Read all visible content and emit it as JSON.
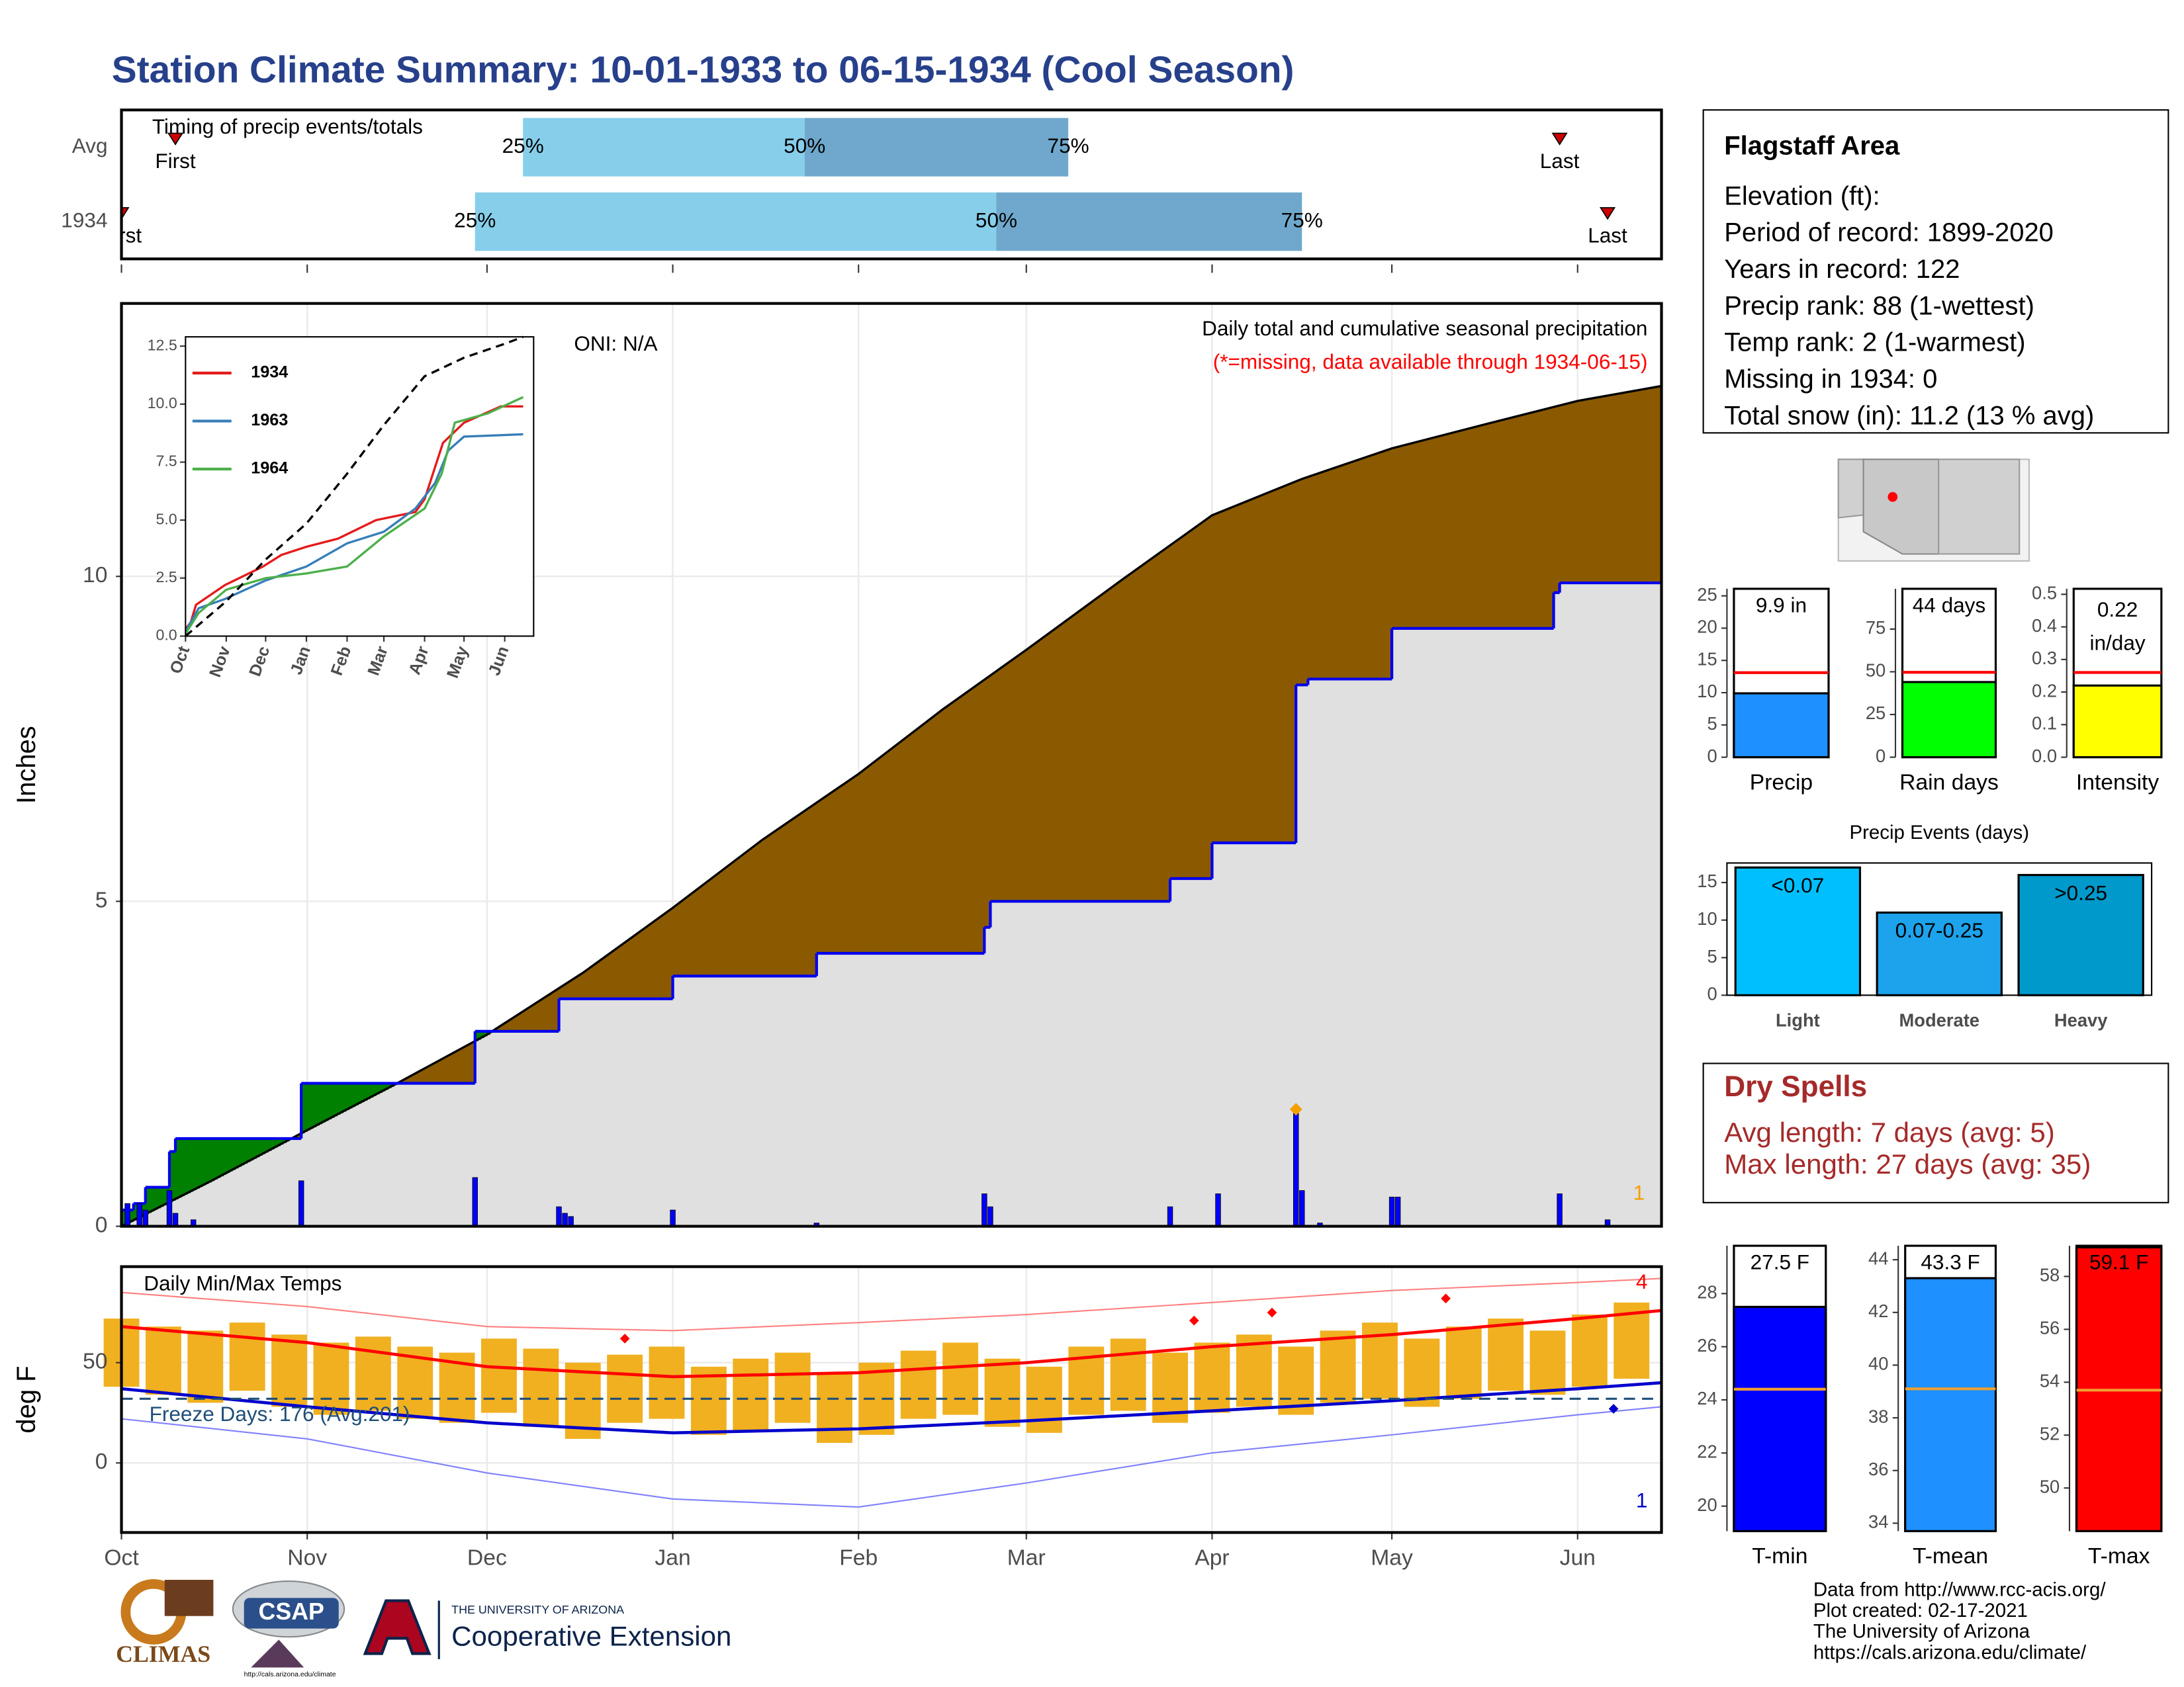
{
  "title": "Station Climate Summary: 10-01-1933 to 06-15-1934 (Cool Season)",
  "chart_data": [
    {
      "type": "timing",
      "subtitle": "Timing of precip events/totals",
      "categories": [
        "Avg",
        "1934"
      ],
      "first": [
        9,
        0
      ],
      "q25": [
        67,
        59
      ],
      "q50": [
        114,
        146
      ],
      "q75": [
        158,
        197
      ],
      "last": [
        240,
        248
      ],
      "labels": {
        "first": "First",
        "last": "Last",
        "q25": "25%",
        "q50": "50%",
        "q75": "75%"
      },
      "colors": {
        "low": "#87ceeb",
        "high": "#6fa8cc",
        "marker": "#cc0000"
      },
      "xlim": [
        0,
        257
      ]
    },
    {
      "type": "precip",
      "ylabel": "Inches",
      "oni": "ONI: N/A",
      "description": "Daily total and cumulative seasonal precipitation",
      "missing": "(*=missing, data available through 1934-06-15)",
      "count": "1",
      "xlim": [
        0,
        257
      ],
      "ylim": [
        0,
        14.2
      ],
      "yticks": [
        0,
        5,
        10
      ],
      "xticks": [
        0,
        31,
        61,
        92,
        123,
        151,
        182,
        212,
        243
      ],
      "grid": true,
      "average": {
        "x": [
          0,
          15,
          31,
          46,
          61,
          77,
          92,
          107,
          123,
          137,
          151,
          167,
          182,
          197,
          212,
          228,
          243,
          257
        ],
        "values": [
          0,
          0.7,
          1.48,
          2.2,
          2.95,
          3.9,
          4.9,
          5.95,
          6.96,
          7.95,
          8.87,
          9.95,
          10.94,
          11.5,
          11.97,
          12.35,
          12.7,
          12.93
        ],
        "color": "#e0e0e0"
      },
      "cumulative": {
        "x": [
          0,
          2,
          4,
          8,
          9,
          30,
          59,
          73,
          92,
          116,
          144,
          145,
          175,
          182,
          196,
          198,
          212,
          239,
          240
        ],
        "values": [
          0.25,
          0.35,
          0.6,
          1.15,
          1.35,
          2.2,
          3.0,
          3.5,
          3.85,
          4.2,
          4.6,
          5.0,
          5.35,
          5.9,
          8.33,
          8.42,
          9.2,
          9.75,
          9.9
        ],
        "color": "#0000ee"
      },
      "daily": {
        "x": [
          1,
          3,
          4,
          8,
          9,
          12,
          30,
          59,
          73,
          74,
          75,
          92,
          116,
          144,
          145,
          175,
          183,
          196,
          197,
          200,
          212,
          213,
          240,
          248
        ],
        "values": [
          0.35,
          0.35,
          0.25,
          0.55,
          0.2,
          0.1,
          0.7,
          0.75,
          0.3,
          0.2,
          0.15,
          0.25,
          0.05,
          0.5,
          0.3,
          0.3,
          0.5,
          1.8,
          0.55,
          0.05,
          0.45,
          0.45,
          0.5,
          0.1
        ],
        "color": "#0000ff"
      },
      "max_daily": {
        "x": 196,
        "value": 1.8,
        "color": "#f5a000"
      },
      "fill_below": "#8b5a00",
      "fill_above": "#008000"
    },
    {
      "type": "line",
      "xlim": [
        0,
        265
      ],
      "ylim": [
        0,
        12.9
      ],
      "yticks": [
        {
          "value": 0,
          "label": "0.0"
        },
        {
          "value": 2.5,
          "label": "2.5"
        },
        {
          "value": 5,
          "label": "5.0"
        },
        {
          "value": 7.5,
          "label": "7.5"
        },
        {
          "value": 10,
          "label": "10.0"
        },
        {
          "value": 12.5,
          "label": "12.5"
        }
      ],
      "xticks": [
        {
          "value": 0,
          "label": "Oct"
        },
        {
          "value": 31,
          "label": "Nov"
        },
        {
          "value": 61,
          "label": "Dec"
        },
        {
          "value": 92,
          "label": "Jan"
        },
        {
          "value": 123,
          "label": "Feb"
        },
        {
          "value": 151,
          "label": "Mar"
        },
        {
          "value": 182,
          "label": "Apr"
        },
        {
          "value": 212,
          "label": "May"
        },
        {
          "value": 243,
          "label": "Jun"
        }
      ],
      "series": [
        {
          "name": "1934",
          "color": "#e41a1c",
          "x": [
            0,
            4,
            8,
            30,
            59,
            73,
            92,
            116,
            145,
            175,
            182,
            196,
            212,
            240,
            257
          ],
          "values": [
            0.3,
            0.6,
            1.35,
            2.2,
            3.0,
            3.5,
            3.85,
            4.2,
            5.0,
            5.35,
            5.9,
            8.33,
            9.2,
            9.9,
            9.9
          ]
        },
        {
          "name": "1963",
          "color": "#377eb8",
          "x": [
            0,
            10,
            30,
            61,
            92,
            123,
            151,
            175,
            190,
            200,
            212,
            257
          ],
          "values": [
            0.2,
            1.2,
            1.6,
            2.4,
            3.0,
            4.0,
            4.5,
            5.5,
            6.6,
            8.0,
            8.6,
            8.7
          ]
        },
        {
          "name": "1964",
          "color": "#4daf4a",
          "x": [
            0,
            10,
            31,
            61,
            92,
            123,
            151,
            182,
            195,
            205,
            230,
            257
          ],
          "values": [
            0.1,
            1.0,
            2.0,
            2.5,
            2.7,
            3.0,
            4.3,
            5.5,
            7.0,
            9.2,
            9.6,
            10.3
          ]
        },
        {
          "color": "#000000",
          "dash": true,
          "x": [
            0,
            31,
            61,
            92,
            123,
            151,
            182,
            212,
            243,
            257
          ],
          "values": [
            0,
            1.5,
            3.3,
            4.85,
            7.0,
            9.1,
            11.2,
            12.0,
            12.6,
            12.9
          ]
        }
      ]
    },
    {
      "type": "temps",
      "title": "Daily Min/Max Temps",
      "ylabel": "deg F",
      "xlim": [
        0,
        257
      ],
      "ylim": [
        -34.7,
        97.9
      ],
      "yticks": [
        0,
        50
      ],
      "grid": true,
      "xticks": [
        {
          "value": 0,
          "label": "Oct"
        },
        {
          "value": 31,
          "label": "Nov"
        },
        {
          "value": 61,
          "label": "Dec"
        },
        {
          "value": 92,
          "label": "Jan"
        },
        {
          "value": 123,
          "label": "Feb"
        },
        {
          "value": 151,
          "label": "Mar"
        },
        {
          "value": 182,
          "label": "Apr"
        },
        {
          "value": 212,
          "label": "May"
        },
        {
          "value": 243,
          "label": "Jun"
        }
      ],
      "daily": {
        "x": [
          0,
          7,
          14,
          21,
          28,
          35,
          42,
          49,
          56,
          63,
          70,
          77,
          84,
          91,
          98,
          105,
          112,
          119,
          126,
          133,
          140,
          147,
          154,
          161,
          168,
          175,
          182,
          189,
          196,
          203,
          210,
          217,
          224,
          231,
          238,
          245,
          252
        ],
        "max": [
          72,
          68,
          66,
          70,
          64,
          60,
          63,
          58,
          55,
          62,
          57,
          50,
          54,
          58,
          48,
          52,
          55,
          45,
          50,
          56,
          60,
          52,
          48,
          58,
          62,
          55,
          60,
          64,
          58,
          66,
          70,
          62,
          68,
          72,
          66,
          74,
          80
        ],
        "min": [
          38,
          34,
          30,
          36,
          28,
          24,
          26,
          22,
          20,
          25,
          18,
          12,
          20,
          22,
          14,
          16,
          20,
          10,
          14,
          22,
          24,
          18,
          15,
          24,
          26,
          20,
          25,
          28,
          24,
          30,
          32,
          28,
          32,
          36,
          34,
          38,
          42
        ],
        "color": "#f0b020"
      },
      "avg_max": {
        "x": [
          0,
          31,
          61,
          92,
          123,
          151,
          182,
          212,
          243,
          257
        ],
        "values": [
          68,
          60,
          48,
          43,
          45,
          50,
          58,
          64,
          72,
          76
        ],
        "color": "#ff0000"
      },
      "avg_min": {
        "x": [
          0,
          31,
          61,
          92,
          123,
          151,
          182,
          212,
          243,
          257
        ],
        "values": [
          37,
          28,
          20,
          15,
          17,
          21,
          26,
          31,
          37,
          40
        ],
        "color": "#0000cc"
      },
      "record_max": {
        "x": [
          0,
          31,
          61,
          92,
          123,
          151,
          182,
          212,
          243,
          257
        ],
        "values": [
          85,
          78,
          68,
          66,
          70,
          74,
          80,
          86,
          90,
          92
        ],
        "color": "#ff8080"
      },
      "record_min": {
        "x": [
          0,
          31,
          61,
          92,
          123,
          151,
          182,
          212,
          243,
          257
        ],
        "values": [
          22,
          12,
          -5,
          -18,
          -22,
          -10,
          5,
          14,
          24,
          28
        ],
        "color": "#8080ff"
      },
      "freeze": {
        "value": 32,
        "label": "Freeze Days: 176 (Avg:201)",
        "color": "#1f4e79"
      },
      "highs": {
        "x": [
          84,
          179,
          192,
          221
        ],
        "values": [
          62,
          71,
          75,
          82
        ],
        "color": "#ff0000"
      },
      "lows": {
        "x": [
          249
        ],
        "values": [
          27
        ],
        "color": "#0000cc"
      },
      "count_high": "4",
      "count_low": "1"
    },
    {
      "type": "info",
      "title": "Flagstaff Area",
      "lines": [
        "Elevation (ft):",
        "Period of record: 1899-2020",
        "Years in record: 122",
        "Precip rank: 88 (1-wettest)",
        "Temp rank: 2 (1-warmest)",
        "Missing in 1934: 0",
        "Total snow (in): 11.2 (13 % avg)"
      ]
    },
    {
      "type": "bar",
      "categories": [
        "Precip"
      ],
      "values": [
        9.9
      ],
      "value_labels": [
        "9.9 in"
      ],
      "average": 13.1,
      "ylim": [
        0,
        26.1
      ],
      "yticks": [
        0,
        5,
        10,
        15,
        20,
        25
      ],
      "color": "#1e90ff",
      "avg_color": "#ff0000"
    },
    {
      "type": "bar",
      "categories": [
        "Rain days"
      ],
      "values": [
        44
      ],
      "value_labels": [
        "44 days"
      ],
      "average": 49.7,
      "ylim": [
        0,
        98.6
      ],
      "yticks": [
        0,
        25,
        50,
        75
      ],
      "color": "#00ff00",
      "avg_color": "#ff0000"
    },
    {
      "type": "bar",
      "categories": [
        "Intensity"
      ],
      "values": [
        0.22
      ],
      "unit": "in/day",
      "average": 0.26,
      "ylim": [
        0,
        0.517
      ],
      "yticks": [
        {
          "value": 0,
          "label": "0.0"
        },
        {
          "value": 0.1,
          "label": "0.1"
        },
        {
          "value": 0.2,
          "label": "0.2"
        },
        {
          "value": 0.3,
          "label": "0.3"
        },
        {
          "value": 0.4,
          "label": "0.4"
        },
        {
          "value": 0.5,
          "label": "0.5"
        }
      ],
      "color": "#ffff00",
      "avg_color": "#ff0000"
    },
    {
      "type": "events",
      "title": "Precip Events (days)",
      "categories": [
        "Light",
        "Moderate",
        "Heavy"
      ],
      "values": [
        17,
        11,
        16
      ],
      "bar_labels": [
        "<0.07",
        "0.07-0.25",
        ">0.25"
      ],
      "colors": [
        "#00bfff",
        "#1ca3ec",
        "#0099cc"
      ],
      "ylim": [
        0,
        17.6
      ],
      "yticks": [
        0,
        5,
        10,
        15
      ]
    },
    {
      "type": "text",
      "title": "Dry Spells",
      "lines": [
        "Avg length: 7 days (avg: 5)",
        "Max length: 27 days (avg: 35)"
      ],
      "color": "#a52a2a"
    },
    {
      "type": "bar",
      "categories": [
        "T-min"
      ],
      "values": [
        27.5
      ],
      "value_labels": [
        "27.5 F"
      ],
      "average": 24.4,
      "ylim": [
        19.06,
        29.8
      ],
      "yticks": [
        20,
        22,
        24,
        26,
        28
      ],
      "color": "#0000ff",
      "avg_color": "#f0a030"
    },
    {
      "type": "bar",
      "categories": [
        "T-mean"
      ],
      "values": [
        43.3
      ],
      "value_labels": [
        "43.3 F"
      ],
      "average": 39.1,
      "ylim": [
        33.7,
        44.53
      ],
      "yticks": [
        34,
        36,
        38,
        40,
        42,
        44
      ],
      "color": "#1e90ff",
      "avg_color": "#f0a030"
    },
    {
      "type": "bar",
      "categories": [
        "T-max"
      ],
      "values": [
        59.1
      ],
      "value_labels": [
        "59.1 F"
      ],
      "average": 53.7,
      "ylim": [
        48.37,
        59.16
      ],
      "yticks": [
        50,
        52,
        54,
        56,
        58
      ],
      "color": "#ff0000",
      "avg_color": "#f0a030"
    }
  ],
  "footer": {
    "logos": [
      "CLIMAS",
      "CSAP",
      "http://cals.arizona.edu/climate",
      "THE UNIVERSITY OF ARIZONA",
      "Cooperative Extension"
    ],
    "credits": [
      "Data from http://www.rcc-acis.org/",
      "Plot created: 02-17-2021",
      "The University of Arizona",
      "https://cals.arizona.edu/climate/"
    ]
  }
}
